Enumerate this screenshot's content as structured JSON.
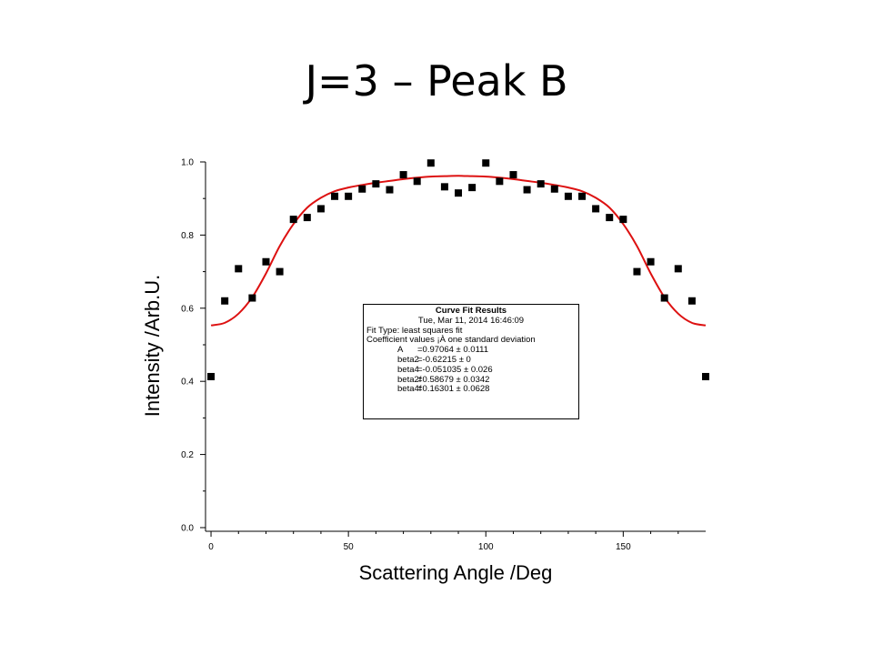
{
  "slide": {
    "title": "J=3 – Peak B"
  },
  "fit_results": {
    "heading": "Curve Fit Results",
    "timestamp": "Tue, Mar 11, 2014 16:46:09",
    "fit_type": "Fit Type: least squares fit",
    "coef_header": "Coefficient values ¡À one standard deviation",
    "coefficients": [
      {
        "name": "A",
        "value": "=0.97064 ± 0.0111"
      },
      {
        "name": "beta2",
        "value": "=-0.62215 ± 0"
      },
      {
        "name": "beta4",
        "value": "=-0.051035 ± 0.026"
      },
      {
        "name": "beta2f",
        "value": "=0.58679 ± 0.0342"
      },
      {
        "name": "beta4f",
        "value": "=0.16301 ± 0.0628"
      }
    ]
  },
  "chart_data": {
    "type": "scatter",
    "title": "",
    "xlabel": "Scattering Angle /Deg",
    "ylabel": "Intensity /Arb.U.",
    "xlim": [
      -2,
      180
    ],
    "ylim": [
      -0.01,
      1.0
    ],
    "x_ticks": [
      0,
      50,
      100,
      150
    ],
    "x_tick_labels": [
      "0",
      "50",
      "100",
      "150"
    ],
    "y_ticks": [
      0.0,
      0.2,
      0.4,
      0.6,
      0.8,
      1.0
    ],
    "y_tick_labels": [
      "0.0",
      "0.2",
      "0.4",
      "0.6",
      "0.8",
      "1.0"
    ],
    "grid": false,
    "colors": {
      "points": "#000000",
      "fit": "#dd1111"
    },
    "series": [
      {
        "kind": "points",
        "x": [
          0,
          5,
          10,
          15,
          20,
          25,
          30,
          35,
          40,
          45,
          50,
          55,
          60,
          65,
          70,
          75,
          80,
          85,
          90,
          95,
          100,
          105,
          110,
          115,
          120,
          125,
          130,
          135,
          140,
          145,
          150,
          155,
          160,
          165,
          170,
          175,
          180
        ],
        "y": [
          0.413,
          0.62,
          0.708,
          0.628,
          0.727,
          0.7,
          0.843,
          0.848,
          0.872,
          0.906,
          0.906,
          0.926,
          0.94,
          0.924,
          0.965,
          0.947,
          0.997,
          0.932,
          0.915,
          0.93,
          0.997,
          0.947,
          0.965,
          0.924,
          0.94,
          0.926,
          0.906,
          0.906,
          0.872,
          0.848,
          0.843,
          0.7,
          0.727,
          0.628,
          0.708,
          0.62,
          0.413
        ]
      },
      {
        "kind": "fit",
        "x": [
          0,
          5,
          10,
          15,
          20,
          25,
          30,
          35,
          40,
          45,
          50,
          55,
          60,
          65,
          70,
          75,
          80,
          85,
          90,
          95,
          100,
          105,
          110,
          115,
          120,
          125,
          130,
          135,
          140,
          145,
          150,
          155,
          160,
          165,
          170,
          175,
          180
        ],
        "y": [
          0.553,
          0.56,
          0.585,
          0.63,
          0.695,
          0.77,
          0.83,
          0.875,
          0.902,
          0.92,
          0.93,
          0.937,
          0.943,
          0.948,
          0.953,
          0.957,
          0.96,
          0.961,
          0.962,
          0.961,
          0.96,
          0.957,
          0.953,
          0.948,
          0.943,
          0.937,
          0.93,
          0.92,
          0.902,
          0.875,
          0.83,
          0.77,
          0.695,
          0.63,
          0.585,
          0.56,
          0.553
        ]
      }
    ]
  }
}
